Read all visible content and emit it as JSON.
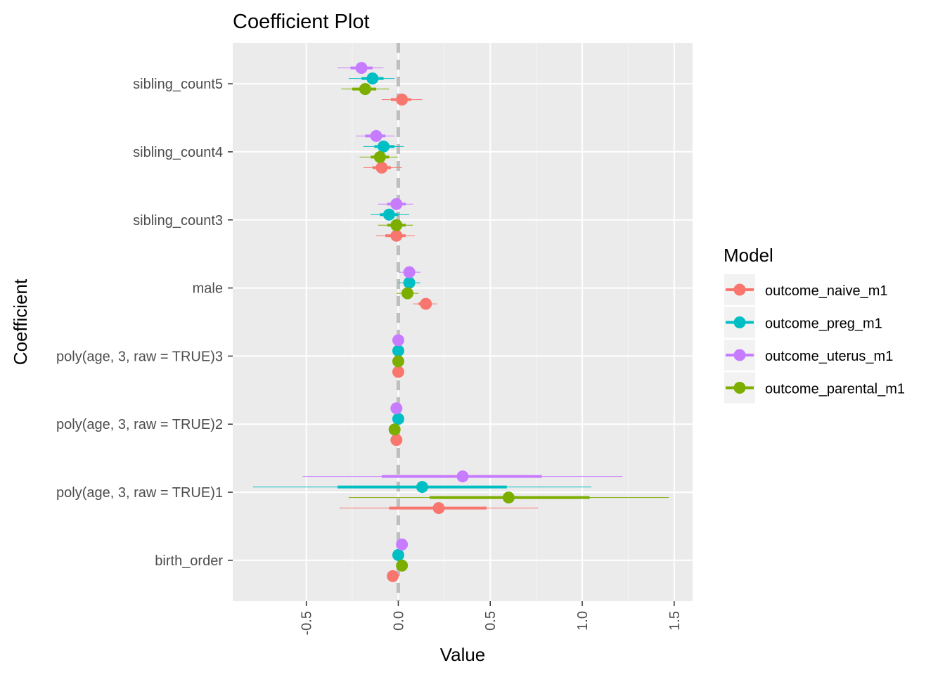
{
  "chart_data": {
    "type": "scatter",
    "title": "Coefficient Plot",
    "xlabel": "Value",
    "ylabel": "Coefficient",
    "xlim": [
      -0.9,
      1.6
    ],
    "x_ticks": [
      -0.5,
      0.0,
      0.5,
      1.0,
      1.5
    ],
    "x_tick_labels": [
      "-0.5",
      "0.0",
      "0.5",
      "1.0",
      "1.5"
    ],
    "reference_line_x": 0,
    "grid": true,
    "legend_position": "right",
    "legend_title": "Model",
    "categories": [
      "sibling_count5",
      "sibling_count4",
      "sibling_count3",
      "male",
      "poly(age, 3, raw = TRUE)3",
      "poly(age, 3, raw = TRUE)2",
      "poly(age, 3, raw = TRUE)1",
      "birth_order"
    ],
    "series": [
      {
        "name": "outcome_naive_m1",
        "color": "#F8766D",
        "points": [
          {
            "estimate": 0.02,
            "inner": [
              -0.04,
              0.07
            ],
            "outer": [
              -0.09,
              0.13
            ]
          },
          {
            "estimate": -0.09,
            "inner": [
              -0.14,
              -0.04
            ],
            "outer": [
              -0.19,
              0.02
            ]
          },
          {
            "estimate": -0.01,
            "inner": [
              -0.07,
              0.04
            ],
            "outer": [
              -0.12,
              0.09
            ]
          },
          {
            "estimate": 0.15,
            "inner": [
              0.11,
              0.18
            ],
            "outer": [
              0.08,
              0.21
            ]
          },
          {
            "estimate": 0.0,
            "inner": [
              -0.01,
              0.01
            ],
            "outer": [
              -0.02,
              0.02
            ]
          },
          {
            "estimate": -0.01,
            "inner": [
              -0.02,
              0.0
            ],
            "outer": [
              -0.03,
              0.01
            ]
          },
          {
            "estimate": 0.22,
            "inner": [
              -0.05,
              0.48
            ],
            "outer": [
              -0.32,
              0.76
            ]
          },
          {
            "estimate": -0.03,
            "inner": [
              -0.04,
              -0.02
            ],
            "outer": [
              -0.05,
              -0.01
            ]
          }
        ]
      },
      {
        "name": "outcome_preg_m1",
        "color": "#00BFC4",
        "points": [
          {
            "estimate": -0.14,
            "inner": [
              -0.2,
              -0.08
            ],
            "outer": [
              -0.27,
              -0.02
            ]
          },
          {
            "estimate": -0.08,
            "inner": [
              -0.13,
              -0.02
            ],
            "outer": [
              -0.19,
              0.03
            ]
          },
          {
            "estimate": -0.05,
            "inner": [
              -0.1,
              0.0
            ],
            "outer": [
              -0.15,
              0.06
            ]
          },
          {
            "estimate": 0.06,
            "inner": [
              0.03,
              0.09
            ],
            "outer": [
              0.0,
              0.12
            ]
          },
          {
            "estimate": 0.0,
            "inner": [
              -0.01,
              0.01
            ],
            "outer": [
              -0.02,
              0.02
            ]
          },
          {
            "estimate": 0.0,
            "inner": [
              -0.01,
              0.01
            ],
            "outer": [
              -0.02,
              0.02
            ]
          },
          {
            "estimate": 0.13,
            "inner": [
              -0.33,
              0.59
            ],
            "outer": [
              -0.79,
              1.05
            ]
          },
          {
            "estimate": 0.0,
            "inner": [
              -0.01,
              0.01
            ],
            "outer": [
              -0.02,
              0.02
            ]
          }
        ]
      },
      {
        "name": "outcome_uterus_m1",
        "color": "#C77CFF",
        "points": [
          {
            "estimate": -0.2,
            "inner": [
              -0.26,
              -0.14
            ],
            "outer": [
              -0.33,
              -0.08
            ]
          },
          {
            "estimate": -0.12,
            "inner": [
              -0.18,
              -0.07
            ],
            "outer": [
              -0.23,
              -0.02
            ]
          },
          {
            "estimate": -0.01,
            "inner": [
              -0.06,
              0.04
            ],
            "outer": [
              -0.11,
              0.08
            ]
          },
          {
            "estimate": 0.06,
            "inner": [
              0.03,
              0.09
            ],
            "outer": [
              0.0,
              0.12
            ]
          },
          {
            "estimate": 0.0,
            "inner": [
              -0.01,
              0.01
            ],
            "outer": [
              -0.02,
              0.02
            ]
          },
          {
            "estimate": -0.01,
            "inner": [
              -0.02,
              0.0
            ],
            "outer": [
              -0.03,
              0.01
            ]
          },
          {
            "estimate": 0.35,
            "inner": [
              -0.09,
              0.78
            ],
            "outer": [
              -0.52,
              1.22
            ]
          },
          {
            "estimate": 0.02,
            "inner": [
              0.01,
              0.03
            ],
            "outer": [
              0.0,
              0.04
            ]
          }
        ]
      },
      {
        "name": "outcome_parental_m1",
        "color": "#7CAE00",
        "points": [
          {
            "estimate": -0.18,
            "inner": [
              -0.25,
              -0.12
            ],
            "outer": [
              -0.31,
              -0.05
            ]
          },
          {
            "estimate": -0.1,
            "inner": [
              -0.15,
              -0.05
            ],
            "outer": [
              -0.21,
              0.0
            ]
          },
          {
            "estimate": -0.01,
            "inner": [
              -0.06,
              0.04
            ],
            "outer": [
              -0.11,
              0.08
            ]
          },
          {
            "estimate": 0.05,
            "inner": [
              0.02,
              0.08
            ],
            "outer": [
              -0.01,
              0.11
            ]
          },
          {
            "estimate": 0.0,
            "inner": [
              -0.01,
              0.01
            ],
            "outer": [
              -0.02,
              0.02
            ]
          },
          {
            "estimate": -0.02,
            "inner": [
              -0.03,
              -0.01
            ],
            "outer": [
              -0.04,
              0.0
            ]
          },
          {
            "estimate": 0.6,
            "inner": [
              0.17,
              1.04
            ],
            "outer": [
              -0.27,
              1.47
            ]
          },
          {
            "estimate": 0.02,
            "inner": [
              0.01,
              0.03
            ],
            "outer": [
              0.0,
              0.04
            ]
          }
        ]
      }
    ],
    "legend_order": [
      "outcome_naive_m1",
      "outcome_preg_m1",
      "outcome_uterus_m1",
      "outcome_parental_m1"
    ]
  }
}
